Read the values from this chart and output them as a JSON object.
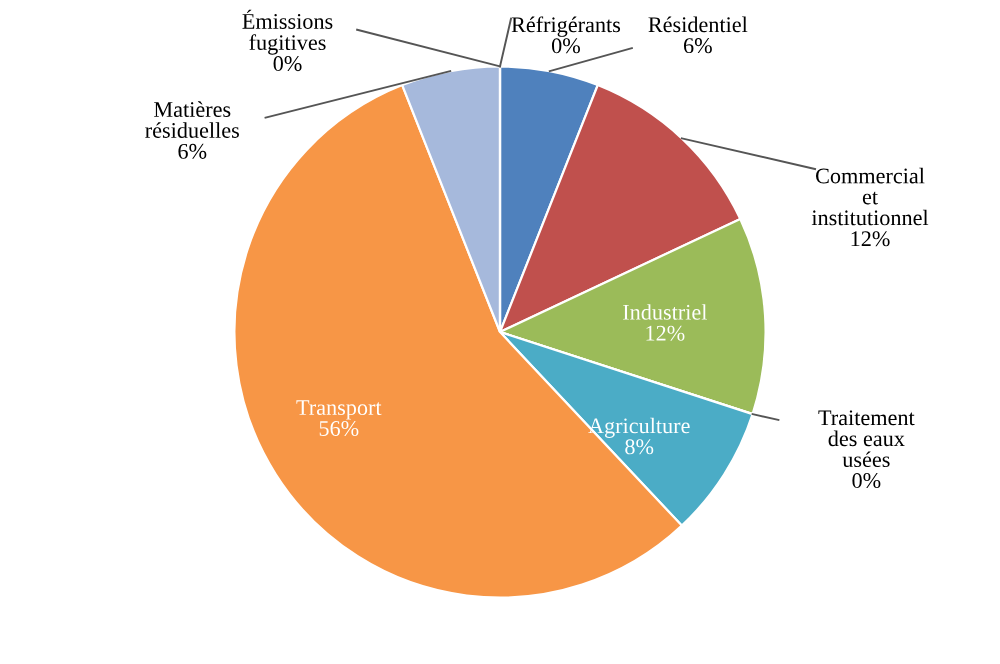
{
  "chart_data": {
    "type": "pie",
    "categories": [
      "Réfrigérants",
      "Résidentiel",
      "Commercial\net\ninstitutionnel",
      "Industriel",
      "Traitement\ndes eaux\nusées",
      "Agriculture",
      "Transport",
      "Matières\nrésiduelles",
      "Émissions\nfugitives"
    ],
    "values": [
      0,
      6,
      12,
      12,
      0,
      8,
      56,
      6,
      0
    ],
    "colors": [
      "#c0504d",
      "#4f81bd",
      "#c0504d",
      "#9bbb59",
      "#8064a2",
      "#4bacc6",
      "#f79646",
      "#a6b9dc",
      "#4f81bd"
    ],
    "value_labels": [
      "0%",
      "6%",
      "12%",
      "12%",
      "0%",
      "8%",
      "56%",
      "6%",
      "0%"
    ]
  }
}
